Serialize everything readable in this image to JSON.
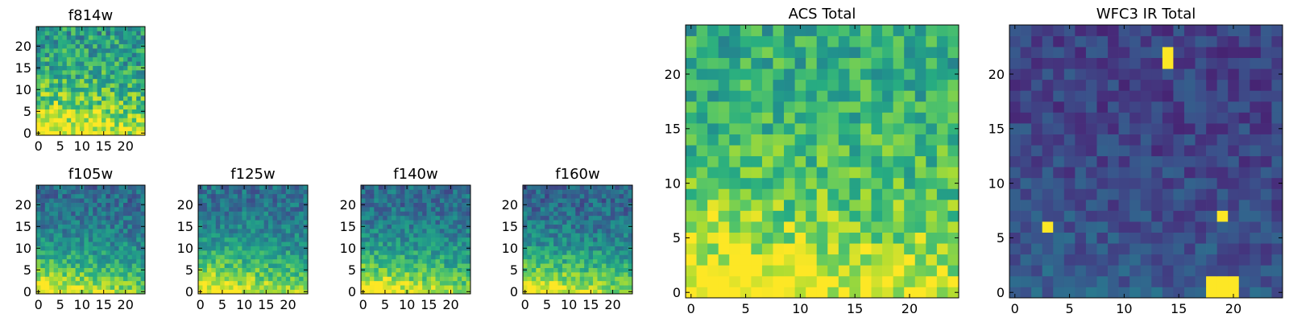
{
  "chart_data": [
    {
      "type": "heatmap",
      "title": "f814w",
      "colormap": "viridis",
      "grid_size": 25,
      "x_ticks": [
        0,
        5,
        10,
        15,
        20
      ],
      "y_ticks": [
        0,
        5,
        10,
        15,
        20
      ],
      "xlim": [
        -0.5,
        24.5
      ],
      "ylim": [
        -0.5,
        24.5
      ],
      "pattern": {
        "base": 0.55,
        "gradient": 0.55,
        "noise": 0.22,
        "seed": 11
      }
    },
    {
      "type": "heatmap",
      "title": "f105w",
      "colormap": "viridis",
      "grid_size": 25,
      "x_ticks": [
        0,
        5,
        10,
        15,
        20
      ],
      "y_ticks": [
        0,
        5,
        10,
        15,
        20
      ],
      "xlim": [
        -0.5,
        24.5
      ],
      "ylim": [
        -0.5,
        24.5
      ],
      "pattern": {
        "base": 0.35,
        "gradient": 0.7,
        "noise": 0.15,
        "seed": 23
      }
    },
    {
      "type": "heatmap",
      "title": "f125w",
      "colormap": "viridis",
      "grid_size": 25,
      "x_ticks": [
        0,
        5,
        10,
        15,
        20
      ],
      "y_ticks": [
        0,
        5,
        10,
        15,
        20
      ],
      "xlim": [
        -0.5,
        24.5
      ],
      "ylim": [
        -0.5,
        24.5
      ],
      "pattern": {
        "base": 0.38,
        "gradient": 0.7,
        "noise": 0.15,
        "seed": 37
      }
    },
    {
      "type": "heatmap",
      "title": "f140w",
      "colormap": "viridis",
      "grid_size": 25,
      "x_ticks": [
        0,
        5,
        10,
        15,
        20
      ],
      "y_ticks": [
        0,
        5,
        10,
        15,
        20
      ],
      "xlim": [
        -0.5,
        24.5
      ],
      "ylim": [
        -0.5,
        24.5
      ],
      "pattern": {
        "base": 0.36,
        "gradient": 0.72,
        "noise": 0.15,
        "seed": 41
      }
    },
    {
      "type": "heatmap",
      "title": "f160w",
      "colormap": "viridis",
      "grid_size": 25,
      "x_ticks": [
        0,
        5,
        10,
        15,
        20
      ],
      "y_ticks": [
        0,
        5,
        10,
        15,
        20
      ],
      "xlim": [
        -0.5,
        24.5
      ],
      "ylim": [
        -0.5,
        24.5
      ],
      "pattern": {
        "base": 0.34,
        "gradient": 0.74,
        "noise": 0.15,
        "seed": 53
      }
    },
    {
      "type": "heatmap",
      "title": "ACS Total",
      "colormap": "viridis",
      "grid_size": 25,
      "x_ticks": [
        0,
        5,
        10,
        15,
        20
      ],
      "y_ticks": [
        0,
        5,
        10,
        15,
        20
      ],
      "xlim": [
        -0.5,
        24.5
      ],
      "ylim": [
        -0.5,
        24.5
      ],
      "pattern": {
        "base": 0.62,
        "gradient": 0.45,
        "noise": 0.18,
        "seed": 67
      }
    },
    {
      "type": "heatmap",
      "title": "WFC3 IR Total",
      "colormap": "viridis",
      "grid_size": 25,
      "x_ticks": [
        0,
        5,
        10,
        15,
        20
      ],
      "y_ticks": [
        0,
        5,
        10,
        15,
        20
      ],
      "xlim": [
        -0.5,
        24.5
      ],
      "ylim": [
        -0.5,
        24.5
      ],
      "pattern": {
        "base": 0.2,
        "gradient": 0.12,
        "noise": 0.1,
        "seed": 79
      },
      "bright_cells": [
        [
          18,
          0
        ],
        [
          19,
          0
        ],
        [
          20,
          0
        ],
        [
          18,
          1
        ],
        [
          19,
          1
        ],
        [
          20,
          1
        ],
        [
          3,
          6
        ],
        [
          19,
          7
        ],
        [
          14,
          21
        ],
        [
          14,
          22
        ]
      ]
    }
  ]
}
